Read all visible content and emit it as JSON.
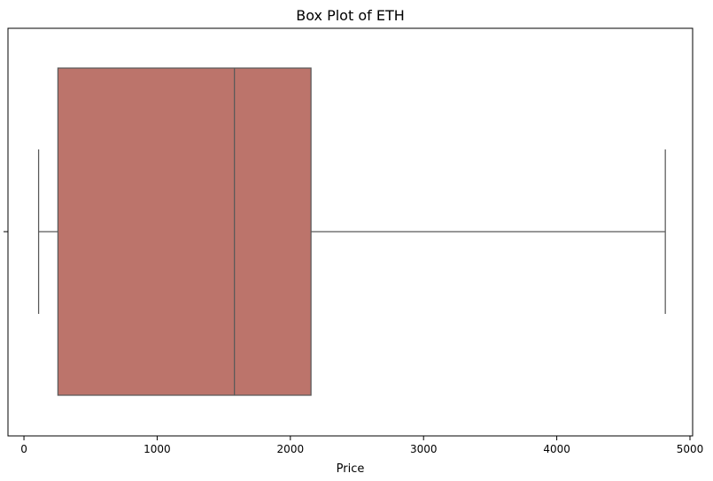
{
  "chart_data": {
    "type": "box",
    "title": "Box Plot of ETH",
    "xlabel": "Price",
    "ylabel": "",
    "xlim": [
      -120,
      5020
    ],
    "xticks": [
      0,
      1000,
      2000,
      3000,
      4000,
      5000
    ],
    "orientation": "horizontal",
    "grid": false,
    "box": {
      "whisker_low": 110,
      "q1": 255,
      "median": 1580,
      "q3": 2155,
      "whisker_high": 4815
    },
    "colors": {
      "box_fill": "#bc746b",
      "line": "#595959"
    }
  }
}
